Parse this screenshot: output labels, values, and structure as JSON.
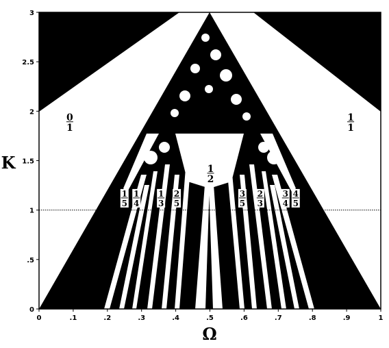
{
  "chart_data": {
    "type": "heatmap",
    "title": "",
    "xlabel": "Ω",
    "ylabel": "K",
    "xlim": [
      0,
      1
    ],
    "ylim": [
      0,
      3
    ],
    "x_ticks": [
      "0",
      ".1",
      ".2",
      ".3",
      ".4",
      ".5",
      ".6",
      ".7",
      ".8",
      ".9",
      "1"
    ],
    "y_ticks": [
      "0",
      ".5",
      "1",
      "1.5",
      "2",
      "2.5",
      "3"
    ],
    "grid": false,
    "reference_line": {
      "K": 1,
      "style": "dotted"
    },
    "regions": [
      {
        "num": "0",
        "den": "1",
        "center": 0.0,
        "label_x": 0.09,
        "label_k": 1.9
      },
      {
        "num": "1",
        "den": "5",
        "center": 0.2,
        "label_x": 0.25,
        "label_k": 1.13
      },
      {
        "num": "1",
        "den": "4",
        "center": 0.25,
        "label_x": 0.285,
        "label_k": 1.13
      },
      {
        "num": "1",
        "den": "3",
        "center": 0.3333,
        "label_x": 0.357,
        "label_k": 1.13
      },
      {
        "num": "2",
        "den": "5",
        "center": 0.4,
        "label_x": 0.403,
        "label_k": 1.13
      },
      {
        "num": "1",
        "den": "2",
        "center": 0.5,
        "label_x": 0.502,
        "label_k": 1.38
      },
      {
        "num": "3",
        "den": "5",
        "center": 0.6,
        "label_x": 0.595,
        "label_k": 1.13
      },
      {
        "num": "2",
        "den": "3",
        "center": 0.6667,
        "label_x": 0.647,
        "label_k": 1.13
      },
      {
        "num": "3",
        "den": "4",
        "center": 0.75,
        "label_x": 0.721,
        "label_k": 1.13
      },
      {
        "num": "4",
        "den": "5",
        "center": 0.8,
        "label_x": 0.751,
        "label_k": 1.13
      },
      {
        "num": "1",
        "den": "1",
        "center": 1.0,
        "label_x": 0.912,
        "label_k": 1.9
      }
    ]
  }
}
